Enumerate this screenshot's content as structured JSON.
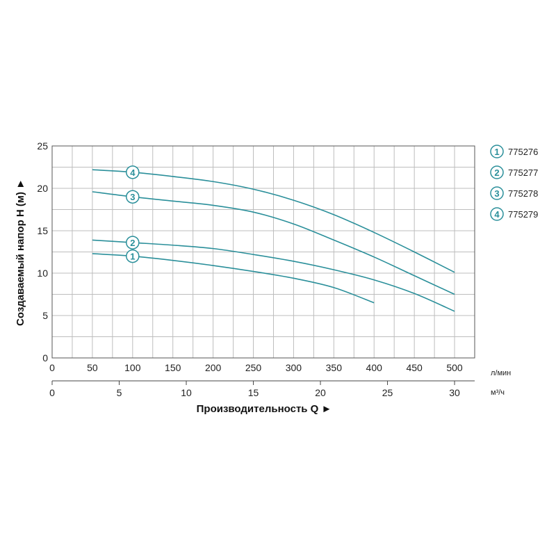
{
  "chart_data": {
    "type": "line",
    "ylabel": "Создаваемый напор H (м) ►",
    "xlabel": "Производительность Q ►",
    "ylim": [
      0,
      25
    ],
    "y_ticks": [
      "0",
      "5",
      "10",
      "15",
      "20",
      "25"
    ],
    "x_primary": {
      "unit": "л/мин",
      "range": [
        0,
        525
      ],
      "ticks": [
        "0",
        "50",
        "100",
        "150",
        "200",
        "250",
        "300",
        "350",
        "400",
        "450",
        "500"
      ]
    },
    "x_secondary": {
      "unit": "м³/ч",
      "ticks": [
        "0",
        "5",
        "10",
        "15",
        "20",
        "25",
        "30"
      ]
    },
    "grid": true,
    "legend_position": "right",
    "line_color": "#2a8f9a",
    "series": [
      {
        "name": "775276",
        "marker": "1",
        "marker_at": 100,
        "x": [
          50,
          100,
          150,
          200,
          250,
          300,
          350,
          400
        ],
        "y": [
          12.3,
          12.0,
          11.5,
          10.9,
          10.2,
          9.4,
          8.3,
          6.5
        ]
      },
      {
        "name": "775277",
        "marker": "2",
        "marker_at": 100,
        "x": [
          50,
          100,
          150,
          200,
          250,
          300,
          350,
          400,
          450,
          500
        ],
        "y": [
          13.9,
          13.6,
          13.3,
          12.9,
          12.2,
          11.4,
          10.4,
          9.2,
          7.6,
          5.5
        ]
      },
      {
        "name": "775278",
        "marker": "3",
        "marker_at": 100,
        "x": [
          50,
          100,
          150,
          200,
          250,
          300,
          350,
          400,
          450,
          500
        ],
        "y": [
          19.6,
          19.0,
          18.5,
          18.0,
          17.2,
          15.8,
          13.9,
          11.9,
          9.7,
          7.5
        ]
      },
      {
        "name": "775279",
        "marker": "4",
        "marker_at": 100,
        "x": [
          50,
          100,
          150,
          200,
          250,
          300,
          350,
          400,
          450,
          500
        ],
        "y": [
          22.2,
          21.9,
          21.4,
          20.8,
          19.9,
          18.6,
          16.9,
          14.8,
          12.5,
          10.1
        ]
      }
    ]
  }
}
